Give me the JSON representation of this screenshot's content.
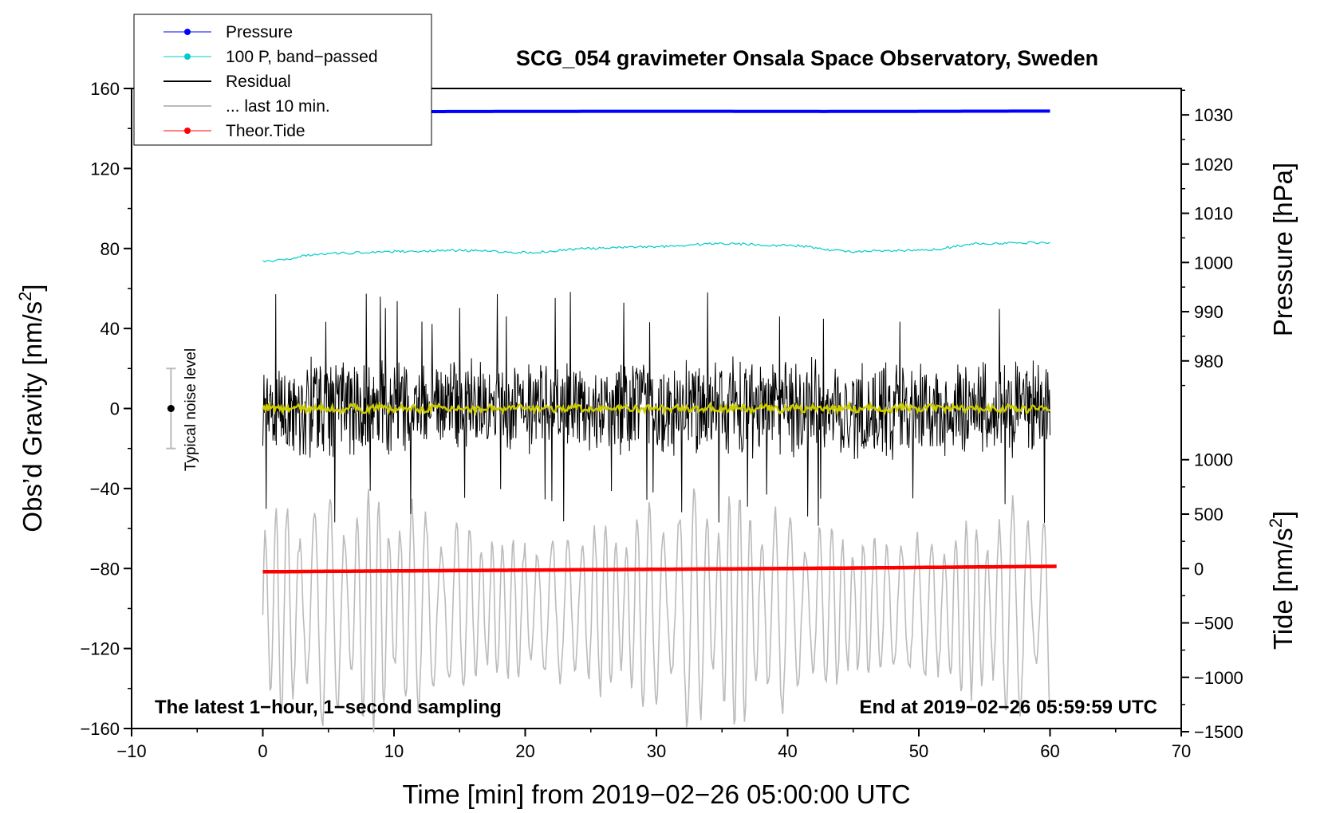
{
  "chart_data": {
    "type": "line",
    "title": "SCG_054 gravimeter Onsala Space Observatory, Sweden",
    "xlabel": "Time [min] from 2019−02−26 05:00:00 UTC",
    "ylabel_main": "Obs’d Gravity [nm/s",
    "ylabel_main_sup": "2",
    "ylabel_main_end": "]",
    "ylabel_pressure": "Pressure [hPa]",
    "ylabel_tide": "Tide [nm/s",
    "ylabel_tide_sup": "2",
    "ylabel_tide_end": "]",
    "xlim": [
      -10,
      70
    ],
    "ylim": [
      -160,
      160
    ],
    "x_ticks": [
      "−10",
      "0",
      "10",
      "20",
      "30",
      "40",
      "50",
      "60",
      "70"
    ],
    "x_tick_values": [
      -10,
      0,
      10,
      20,
      30,
      40,
      50,
      60,
      70
    ],
    "y_ticks": [
      "160",
      "120",
      "80",
      "40",
      "0",
      "−40",
      "−80",
      "−120",
      "−160"
    ],
    "y_tick_values": [
      160,
      120,
      80,
      40,
      0,
      -40,
      -80,
      -120,
      -160
    ],
    "pressure_ticks": [
      "1030",
      "1020",
      "1010",
      "1000",
      "990",
      "980"
    ],
    "pressure_tick_values": [
      1030,
      1020,
      1010,
      1000,
      990,
      980
    ],
    "pressure_axis_map": {
      "hpa_ref": 1000,
      "gravity_at_ref": 73.0,
      "gravity_per_hpa": 2.46
    },
    "tide_ticks": [
      "1000",
      "500",
      "0",
      "−500",
      "−1000",
      "−1500"
    ],
    "tide_tick_values": [
      1000,
      500,
      0,
      -500,
      -1000,
      -1500
    ],
    "tide_axis_map": {
      "nm_ref": 0,
      "gravity_at_ref": -80.0,
      "gravity_per_nm": 0.0544
    },
    "legend": [
      {
        "label": "Pressure",
        "color": "#0000ff",
        "marker": true
      },
      {
        "label": "100 P, band−passed",
        "color": "#00cccc",
        "marker": true
      },
      {
        "label": "Residual",
        "color": "#000000",
        "marker": false
      },
      {
        "label": "... last 10 min.",
        "color": "#bbbbbb",
        "marker": false
      },
      {
        "label": "Theor.Tide",
        "color": "#ff0000",
        "marker": true
      }
    ],
    "legend_position": "top-left",
    "annotations": {
      "left_bottom": "The latest 1−hour, 1−second sampling",
      "right_bottom": "End at 2019−02−26 05:59:59 UTC",
      "noise_label": "Typical noise level"
    },
    "noise_bar": {
      "x": -7,
      "center": 0,
      "half_range": 20
    },
    "series": [
      {
        "name": "Pressure",
        "color": "#0000ff",
        "x_range": [
          0,
          60
        ],
        "values_gravity_units": [
          148.2,
          148.4,
          148.5,
          148.6,
          148.6,
          148.5,
          148.6,
          148.7
        ]
      },
      {
        "name": "100 P, band−passed",
        "color": "#00cccc",
        "x": [
          0,
          5,
          10,
          15,
          20,
          25,
          30,
          35,
          40,
          45,
          50,
          55,
          60
        ],
        "values": [
          73.5,
          77.5,
          78.5,
          79.0,
          78.0,
          80.0,
          81.0,
          82.5,
          81.5,
          78.5,
          79.0,
          82.5,
          83.0
        ]
      },
      {
        "name": "Residual",
        "color": "#000000",
        "x_range": [
          0,
          60
        ],
        "amplitude_typical": 22,
        "peaks": [
          62,
          59,
          60,
          56,
          -56,
          -57,
          -60,
          -54,
          51,
          50
        ]
      },
      {
        "name": "Residual (smoothed)",
        "color": "#cccc00",
        "x_range": [
          0,
          60
        ],
        "level": 0
      },
      {
        "name": "... last 10 min.",
        "color": "#bbbbbb",
        "x_range": [
          0,
          60
        ],
        "center": -100,
        "amplitude_max": 60
      },
      {
        "name": "Theor.Tide",
        "color": "#ff0000",
        "x": [
          0,
          20,
          40,
          60.5
        ],
        "values_nm": [
          -30,
          -15,
          0,
          20
        ]
      }
    ]
  }
}
